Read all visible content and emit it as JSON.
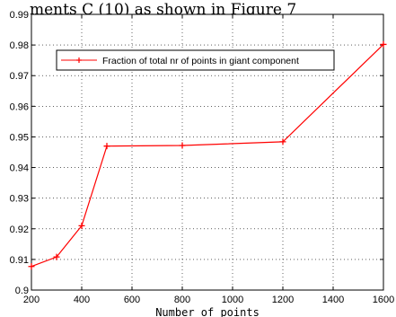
{
  "top_caption": "ments C (10) as shown in Figure 7",
  "chart_data": {
    "type": "line",
    "title": "",
    "xlabel": "Number of points",
    "ylabel": "",
    "xlim": [
      200,
      1600
    ],
    "ylim": [
      0.9,
      0.99
    ],
    "x_ticks": [
      200,
      400,
      600,
      800,
      1000,
      1200,
      1400,
      1600
    ],
    "y_ticks": [
      0.9,
      0.91,
      0.92,
      0.93,
      0.94,
      0.95,
      0.96,
      0.97,
      0.98,
      0.99
    ],
    "y_tick_labels": [
      "0.9",
      "0.91",
      "0.92",
      "0.93",
      "0.94",
      "0.95",
      "0.96",
      "0.97",
      "0.98",
      "0.99"
    ],
    "grid": true,
    "legend_position": "upper-left",
    "series": [
      {
        "name": "Fraction of total nr of points in giant component",
        "color": "#ff0000",
        "marker": "plus",
        "x": [
          200,
          300,
          400,
          500,
          800,
          1200,
          1600
        ],
        "y": [
          0.9077,
          0.9108,
          0.921,
          0.947,
          0.9472,
          0.9484,
          0.9802
        ]
      }
    ]
  }
}
